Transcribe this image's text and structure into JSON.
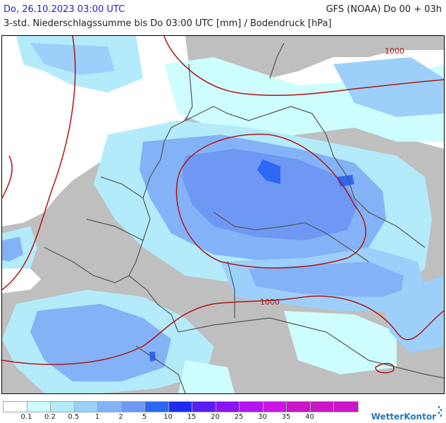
{
  "header": {
    "date_line": "Do, 26.10.2023 03:00 UTC",
    "model_line": "GFS (NOAA) Do 00 + 03h",
    "subtitle": "3-std. Niederschlagssumme bis Do 03:00 UTC [mm] / Bodendruck [hPa]"
  },
  "map": {
    "isobar_labels": [
      "1000",
      "1000"
    ],
    "isobar_color": "#b01414",
    "land_color": "#bfbfbf",
    "sea_color": "#ffffff",
    "border_color": "#555555"
  },
  "legend": {
    "ticks": [
      "0.1",
      "0.2",
      "0.5",
      "1",
      "2",
      "5",
      "10",
      "15",
      "20",
      "25",
      "30",
      "35",
      "40"
    ],
    "colors": [
      "#ffffff",
      "#cdfdfd",
      "#b3ebfa",
      "#9cd0fb",
      "#84b2f6",
      "#6e98f3",
      "#2c67f6",
      "#1e2cf3",
      "#5a1ef3",
      "#8a14f1",
      "#b414f1",
      "#cc14e8",
      "#cc14c8"
    ]
  },
  "brand": {
    "name": "WetterKontor"
  }
}
